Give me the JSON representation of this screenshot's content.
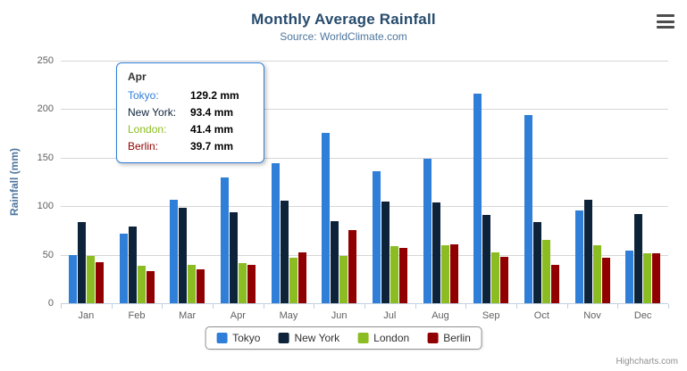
{
  "title": "Monthly Average Rainfall",
  "subtitle": "Source: WorldClimate.com",
  "credits": "Highcharts.com",
  "chart_data": {
    "type": "bar",
    "variant": "grouped-column",
    "title": "Monthly Average Rainfall",
    "subtitle": "Source: WorldClimate.com",
    "categories": [
      "Jan",
      "Feb",
      "Mar",
      "Apr",
      "May",
      "Jun",
      "Jul",
      "Aug",
      "Sep",
      "Oct",
      "Nov",
      "Dec"
    ],
    "xlabel": "",
    "ylabel": "Rainfall (mm)",
    "ylim": [
      0,
      250
    ],
    "ytick_step": 50,
    "grid": true,
    "legend_position": "bottom",
    "series": [
      {
        "name": "Tokyo",
        "color": "#2f7ed8",
        "values": [
          49.9,
          71.5,
          106.4,
          129.2,
          144.0,
          176.0,
          135.6,
          148.5,
          216.4,
          194.1,
          95.6,
          54.4
        ]
      },
      {
        "name": "New York",
        "color": "#0d233a",
        "values": [
          83.6,
          78.8,
          98.5,
          93.4,
          106.0,
          84.5,
          105.0,
          104.3,
          91.2,
          83.5,
          106.6,
          92.3
        ]
      },
      {
        "name": "London",
        "color": "#8bbc21",
        "values": [
          48.9,
          38.8,
          39.3,
          41.4,
          47.0,
          48.3,
          59.0,
          59.6,
          52.4,
          65.2,
          59.3,
          51.2
        ]
      },
      {
        "name": "Berlin",
        "color": "#910000",
        "values": [
          42.4,
          33.2,
          34.5,
          39.7,
          52.6,
          75.5,
          57.4,
          60.4,
          47.6,
          39.1,
          46.8,
          51.1
        ]
      }
    ]
  },
  "tooltip": {
    "header": "Apr",
    "border_color": "#2f7ed8",
    "rows": [
      {
        "label": "Tokyo:",
        "value": "129.2 mm",
        "color": "#2f7ed8"
      },
      {
        "label": "New York:",
        "value": "93.4 mm",
        "color": "#0d233a"
      },
      {
        "label": "London:",
        "value": "41.4 mm",
        "color": "#8bbc21"
      },
      {
        "label": "Berlin:",
        "value": "39.7 mm",
        "color": "#910000"
      }
    ]
  }
}
